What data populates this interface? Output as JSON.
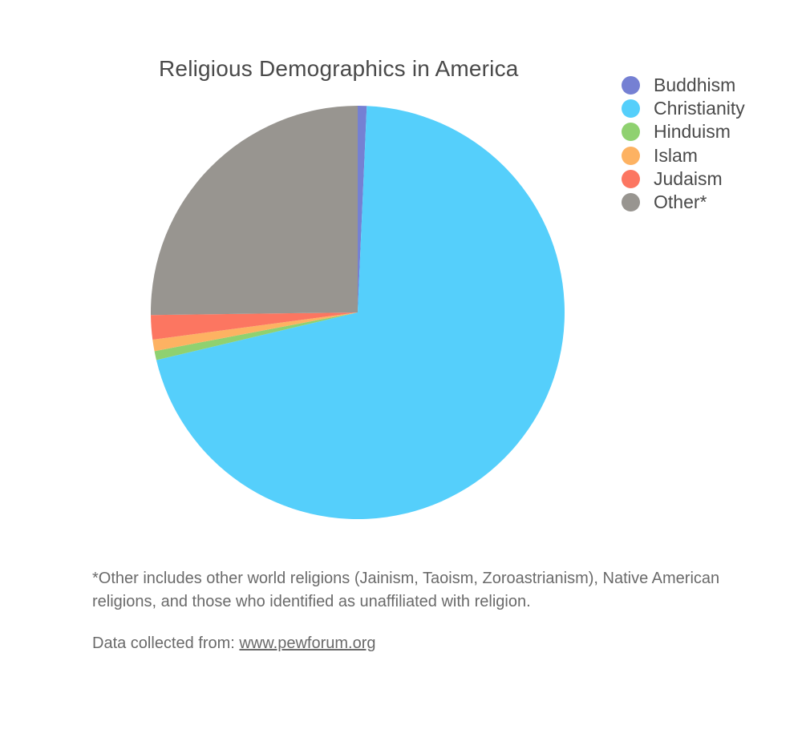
{
  "chart_data": {
    "type": "pie",
    "title": "Religious Demographics in America",
    "legend_position": "top-right",
    "slices": [
      {
        "label": "Buddhism",
        "value": 0.7,
        "color": "#7580d3"
      },
      {
        "label": "Christianity",
        "value": 70.6,
        "color": "#55cffb"
      },
      {
        "label": "Hinduism",
        "value": 0.7,
        "color": "#8fd170"
      },
      {
        "label": "Islam",
        "value": 0.9,
        "color": "#fdb262"
      },
      {
        "label": "Judaism",
        "value": 1.9,
        "color": "#fc7661"
      },
      {
        "label": "Other*",
        "value": 25.2,
        "color": "#989590"
      }
    ]
  },
  "footnote": "*Other includes other world religions (Jainism, Taoism, Zoroastrianism), Native American religions, and those who identified as unaffiliated with religion.",
  "source": {
    "prefix": "Data collected from: ",
    "link_text": "www.pewforum.org"
  }
}
